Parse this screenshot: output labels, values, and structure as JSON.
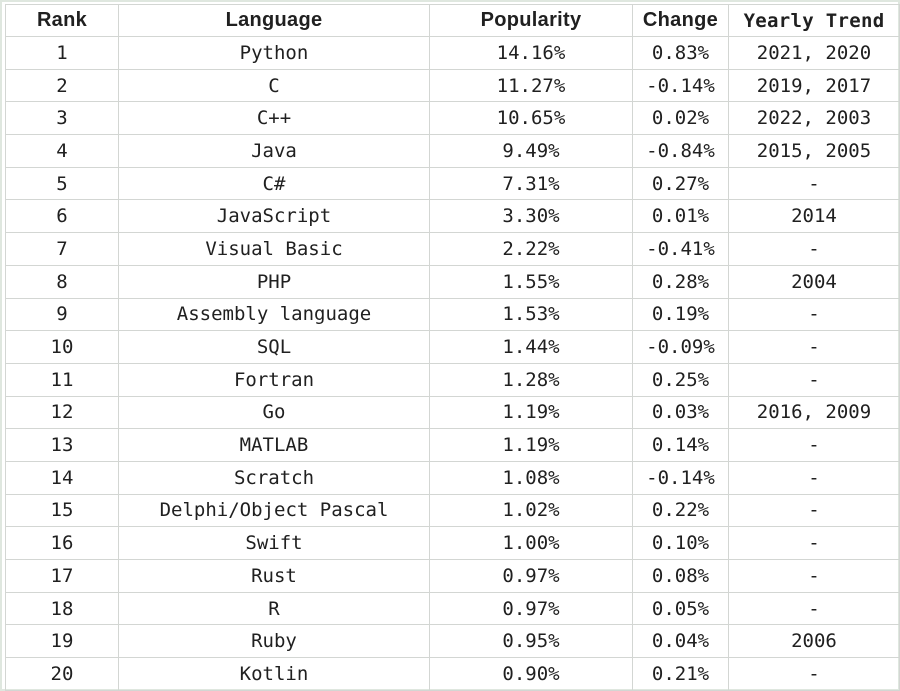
{
  "table": {
    "headers": {
      "rank": "Rank",
      "language": "Language",
      "popularity": "Popularity",
      "change": "Change",
      "trend": "Yearly Trend"
    },
    "rows": [
      {
        "rank": "1",
        "language": "Python",
        "popularity": "14.16%",
        "change": "0.83%",
        "trend": "2021, 2020"
      },
      {
        "rank": "2",
        "language": "C",
        "popularity": "11.27%",
        "change": "-0.14%",
        "trend": "2019, 2017"
      },
      {
        "rank": "3",
        "language": "C++",
        "popularity": "10.65%",
        "change": "0.02%",
        "trend": "2022, 2003"
      },
      {
        "rank": "4",
        "language": "Java",
        "popularity": "9.49%",
        "change": "-0.84%",
        "trend": "2015, 2005"
      },
      {
        "rank": "5",
        "language": "C#",
        "popularity": "7.31%",
        "change": "0.27%",
        "trend": "-"
      },
      {
        "rank": "6",
        "language": "JavaScript",
        "popularity": "3.30%",
        "change": "0.01%",
        "trend": "2014"
      },
      {
        "rank": "7",
        "language": "Visual Basic",
        "popularity": "2.22%",
        "change": "-0.41%",
        "trend": "-"
      },
      {
        "rank": "8",
        "language": "PHP",
        "popularity": "1.55%",
        "change": "0.28%",
        "trend": "2004"
      },
      {
        "rank": "9",
        "language": "Assembly language",
        "popularity": "1.53%",
        "change": "0.19%",
        "trend": "-"
      },
      {
        "rank": "10",
        "language": "SQL",
        "popularity": "1.44%",
        "change": "-0.09%",
        "trend": "-"
      },
      {
        "rank": "11",
        "language": "Fortran",
        "popularity": "1.28%",
        "change": "0.25%",
        "trend": "-"
      },
      {
        "rank": "12",
        "language": "Go",
        "popularity": "1.19%",
        "change": "0.03%",
        "trend": "2016, 2009"
      },
      {
        "rank": "13",
        "language": "MATLAB",
        "popularity": "1.19%",
        "change": "0.14%",
        "trend": "-"
      },
      {
        "rank": "14",
        "language": "Scratch",
        "popularity": "1.08%",
        "change": "-0.14%",
        "trend": "-"
      },
      {
        "rank": "15",
        "language": "Delphi/Object Pascal",
        "popularity": "1.02%",
        "change": "0.22%",
        "trend": "-"
      },
      {
        "rank": "16",
        "language": "Swift",
        "popularity": "1.00%",
        "change": "0.10%",
        "trend": "-"
      },
      {
        "rank": "17",
        "language": "Rust",
        "popularity": "0.97%",
        "change": "0.08%",
        "trend": "-"
      },
      {
        "rank": "18",
        "language": "R",
        "popularity": "0.97%",
        "change": "0.05%",
        "trend": "-"
      },
      {
        "rank": "19",
        "language": "Ruby",
        "popularity": "0.95%",
        "change": "0.04%",
        "trend": "2006"
      },
      {
        "rank": "20",
        "language": "Kotlin",
        "popularity": "0.90%",
        "change": "0.21%",
        "trend": "-"
      }
    ]
  }
}
